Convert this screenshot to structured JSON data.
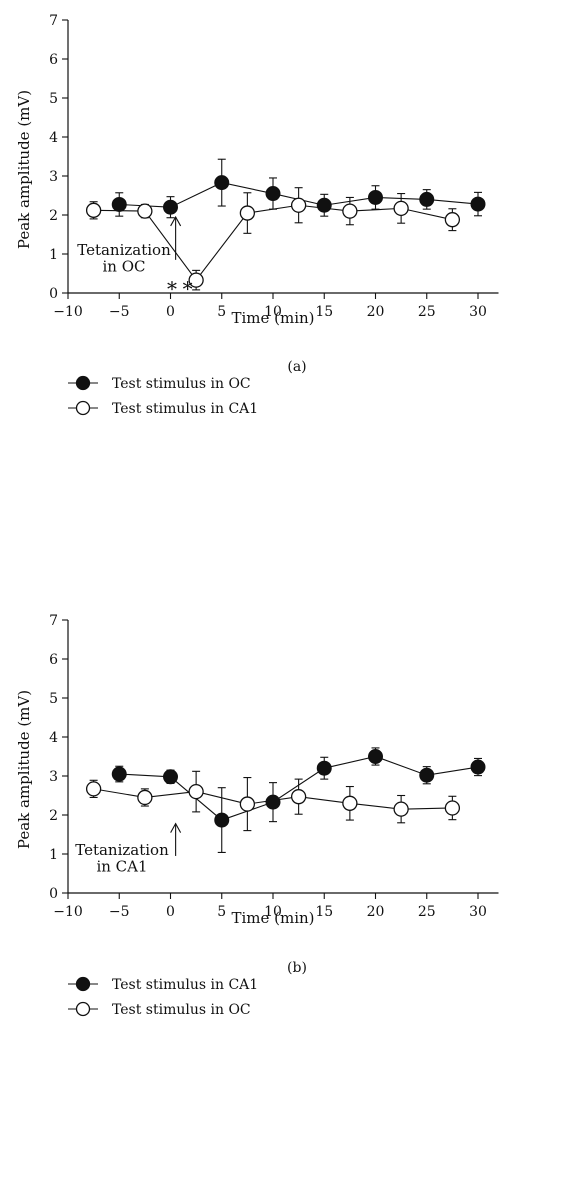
{
  "chart_data": [
    {
      "type": "line",
      "panel_label": "(a)",
      "xlabel": "Time (min)",
      "ylabel": "Peak amplitude (mV)",
      "xlim": [
        -10,
        32
      ],
      "ylim": [
        0,
        7
      ],
      "xticks": [
        -10,
        -5,
        0,
        5,
        10,
        15,
        20,
        25,
        30
      ],
      "yticks": [
        0,
        1,
        2,
        3,
        4,
        5,
        6,
        7
      ],
      "grid": false,
      "legend_position": "below-left",
      "series": [
        {
          "name": "Test stimulus in OC",
          "marker": "filled-circle",
          "x": [
            -5,
            0,
            5,
            10,
            15,
            20,
            25,
            30
          ],
          "y": [
            2.27,
            2.2,
            2.83,
            2.55,
            2.25,
            2.45,
            2.4,
            2.28
          ],
          "err": [
            0.3,
            0.27,
            0.6,
            0.4,
            0.28,
            0.3,
            0.25,
            0.3
          ]
        },
        {
          "name": "Test stimulus in CA1",
          "marker": "open-circle",
          "x": [
            -7.5,
            -2.5,
            2.5,
            7.5,
            12.5,
            17.5,
            22.5,
            27.5
          ],
          "y": [
            2.12,
            2.1,
            0.33,
            2.05,
            2.25,
            2.1,
            2.17,
            1.88
          ],
          "err": [
            0.22,
            0.17,
            0.25,
            0.52,
            0.45,
            0.35,
            0.38,
            0.28
          ]
        }
      ],
      "annotations": {
        "tetanization_text": [
          "Tetanization",
          "in OC"
        ],
        "arrow_x": 0.5,
        "significance": "∗∗",
        "significance_x": 1
      }
    },
    {
      "type": "line",
      "panel_label": "(b)",
      "xlabel": "Time (min)",
      "ylabel": "Peak amplitude (mV)",
      "xlim": [
        -10,
        32
      ],
      "ylim": [
        0,
        7
      ],
      "xticks": [
        -10,
        -5,
        0,
        5,
        10,
        15,
        20,
        25,
        30
      ],
      "yticks": [
        0,
        1,
        2,
        3,
        4,
        5,
        6,
        7
      ],
      "grid": false,
      "legend_position": "below-left",
      "series": [
        {
          "name": "Test stimulus in CA1",
          "marker": "filled-circle",
          "x": [
            -5,
            0,
            5,
            10,
            15,
            20,
            25,
            30
          ],
          "y": [
            3.05,
            2.98,
            1.87,
            2.33,
            3.2,
            3.5,
            3.02,
            3.23
          ],
          "err": [
            0.2,
            0.17,
            0.83,
            0.5,
            0.28,
            0.22,
            0.22,
            0.22
          ]
        },
        {
          "name": "Test stimulus in OC",
          "marker": "open-circle",
          "x": [
            -7.5,
            -2.5,
            2.5,
            7.5,
            12.5,
            17.5,
            22.5,
            27.5
          ],
          "y": [
            2.67,
            2.45,
            2.6,
            2.28,
            2.47,
            2.3,
            2.15,
            2.18
          ],
          "err": [
            0.22,
            0.22,
            0.52,
            0.68,
            0.45,
            0.43,
            0.35,
            0.3
          ]
        }
      ],
      "annotations": {
        "tetanization_text": [
          "Tetanization",
          "in CA1"
        ],
        "arrow_x": 0.5
      }
    }
  ]
}
